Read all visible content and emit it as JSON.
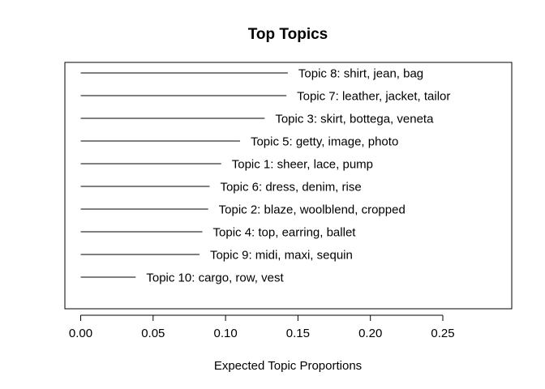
{
  "chart_data": {
    "type": "bar",
    "orientation": "horizontal",
    "title": "Top Topics",
    "xlabel": "Expected Topic Proportions",
    "ylabel": "",
    "xlim": [
      0,
      0.295
    ],
    "xticks": [
      0.0,
      0.05,
      0.1,
      0.15,
      0.2,
      0.25
    ],
    "xtick_labels": [
      "0.00",
      "0.05",
      "0.10",
      "0.15",
      "0.20",
      "0.25"
    ],
    "grid": false,
    "categories": [
      "Topic 8: shirt, jean, bag",
      "Topic 7: leather, jacket, tailor",
      "Topic 3: skirt, bottega, veneta",
      "Topic 5: getty, image, photo",
      "Topic 1: sheer, lace, pump",
      "Topic 6: dress, denim, rise",
      "Topic 2: blaze, woolblend, cropped",
      "Topic 4: top, earring, ballet",
      "Topic 9: midi, maxi, sequin",
      "Topic 10: cargo, row, vest"
    ],
    "values": [
      0.143,
      0.142,
      0.127,
      0.11,
      0.097,
      0.089,
      0.088,
      0.084,
      0.082,
      0.038
    ]
  }
}
